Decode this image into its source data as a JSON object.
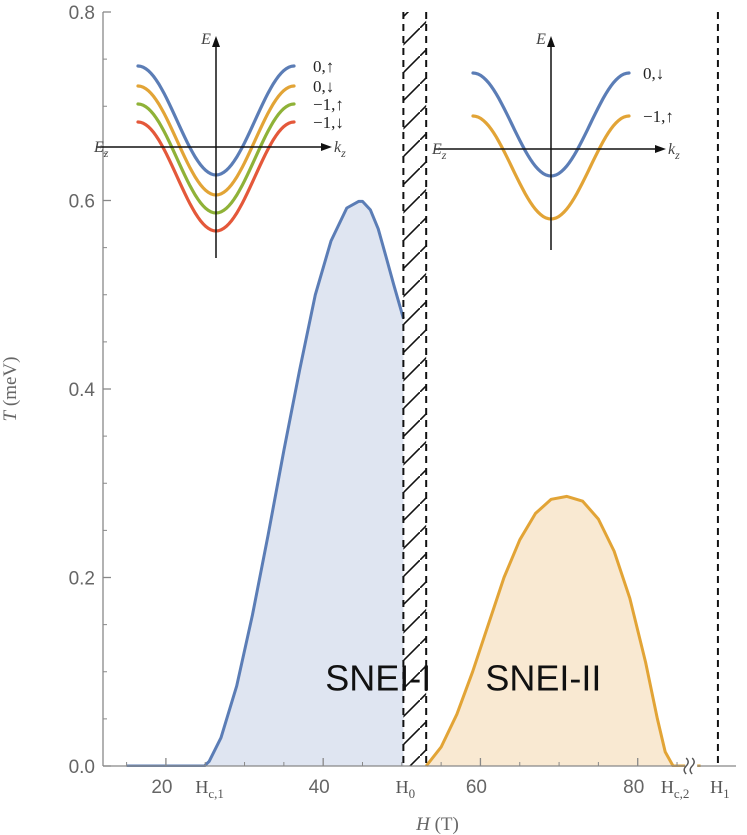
{
  "chart_data": {
    "type": "area",
    "xlabel": "H (T)",
    "ylabel": "T (meV)",
    "xlim": [
      12,
      92.5
    ],
    "ylim": [
      0,
      0.8
    ],
    "xticks": [
      {
        "value": 20,
        "label": "20"
      },
      {
        "value": 40,
        "label": "40"
      },
      {
        "value": 60,
        "label": "60"
      },
      {
        "value": 80,
        "label": "80"
      }
    ],
    "yticks": [
      {
        "value": 0.0,
        "label": "0.0"
      },
      {
        "value": 0.2,
        "label": "0.2"
      },
      {
        "value": 0.4,
        "label": "0.4"
      },
      {
        "value": 0.6,
        "label": "0.6"
      },
      {
        "value": 0.8,
        "label": "0.8"
      }
    ],
    "markers": [
      {
        "name": "hc1",
        "value": 25.3,
        "main": "H",
        "sub": "c,1"
      },
      {
        "name": "h0",
        "value": 50.2,
        "main": "H",
        "sub": "0"
      },
      {
        "name": "hc2",
        "value": 84.5,
        "main": "H",
        "sub": "c,2"
      },
      {
        "name": "h1",
        "value": 90.2,
        "main": "H",
        "sub": "1"
      }
    ],
    "dashed_lines": [
      50.2,
      53.1,
      90.2
    ],
    "hatched_range": [
      50.2,
      53.1
    ],
    "axis_break_at": 86.8,
    "series": [
      {
        "name": "SNEI-I",
        "label": "SNEI-I",
        "color": "#5b7db6",
        "fill": "#dfe5f1",
        "x": [
          15.0,
          24.9,
          25.5,
          27.0,
          29.0,
          31.0,
          33.0,
          35.0,
          37.0,
          39.0,
          41.0,
          43.0,
          44.5,
          45.0,
          46.0,
          47.0,
          48.0,
          49.0,
          50.2
        ],
        "y": [
          0.0,
          0.0,
          0.005,
          0.03,
          0.085,
          0.16,
          0.245,
          0.335,
          0.42,
          0.5,
          0.557,
          0.592,
          0.599,
          0.599,
          0.59,
          0.57,
          0.54,
          0.51,
          0.475
        ]
      },
      {
        "name": "SNEI-II",
        "label": "SNEI-II",
        "color": "#e2a436",
        "fill": "#f9e9d2",
        "x": [
          53.1,
          55.0,
          57.0,
          59.0,
          61.0,
          63.0,
          65.0,
          67.0,
          69.0,
          71.0,
          73.0,
          75.0,
          77.0,
          79.0,
          81.0,
          82.5,
          83.5,
          84.5,
          88.0
        ],
        "y": [
          0.0,
          0.02,
          0.055,
          0.1,
          0.15,
          0.2,
          0.24,
          0.268,
          0.283,
          0.286,
          0.281,
          0.262,
          0.228,
          0.178,
          0.11,
          0.05,
          0.015,
          0.0,
          0.0
        ]
      }
    ],
    "insets": [
      {
        "name": "inset-left",
        "axis_v": "E",
        "axis_h_left": "E",
        "axis_h_left_sub": "z",
        "axis_h_right": "k",
        "axis_h_right_sub": "z",
        "bands": [
          {
            "label": "0,↑",
            "color": "#5b7db6"
          },
          {
            "label": "0,↓",
            "color": "#e2a436"
          },
          {
            "label": "−1,↑",
            "color": "#8fb238"
          },
          {
            "label": "−1,↓",
            "color": "#e4583a"
          }
        ]
      },
      {
        "name": "inset-right",
        "axis_v": "E",
        "axis_h_left": "E",
        "axis_h_left_sub": "z",
        "axis_h_right": "k",
        "axis_h_right_sub": "z",
        "bands": [
          {
            "label": "0,↓",
            "color": "#5b7db6"
          },
          {
            "label": "−1,↑",
            "color": "#e2a436"
          }
        ]
      }
    ]
  }
}
